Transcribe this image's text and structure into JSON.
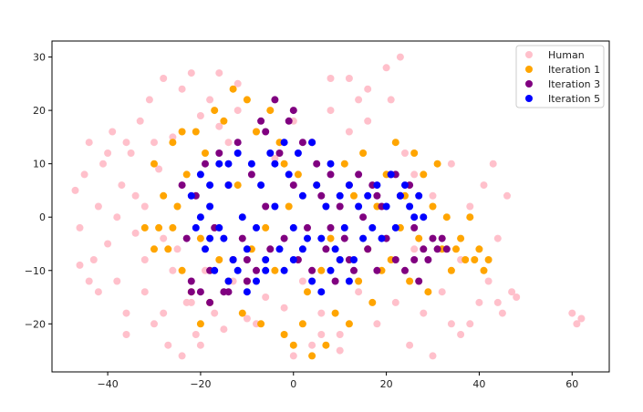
{
  "chart_data": {
    "type": "scatter",
    "title": "",
    "xlabel": "",
    "ylabel": "",
    "xlim": [
      -52,
      68
    ],
    "ylim": [
      -29,
      33
    ],
    "xticks": [
      -40,
      -20,
      0,
      20,
      40,
      60
    ],
    "yticks": [
      -20,
      -10,
      0,
      10,
      20,
      30
    ],
    "legend_position": "top-right",
    "grid": false,
    "series": [
      {
        "name": "Human",
        "color": "#ffc0cb",
        "points": [
          [
            -47,
            5
          ],
          [
            -46,
            -2
          ],
          [
            -45,
            8
          ],
          [
            -44,
            14
          ],
          [
            -43,
            -8
          ],
          [
            -42,
            2
          ],
          [
            -41,
            10
          ],
          [
            -40,
            -5
          ],
          [
            -39,
            16
          ],
          [
            -38,
            -12
          ],
          [
            -37,
            6
          ],
          [
            -36,
            -18
          ],
          [
            -35,
            12
          ],
          [
            -34,
            -3
          ],
          [
            -33,
            18
          ],
          [
            -32,
            -14
          ],
          [
            -31,
            22
          ],
          [
            -30,
            -20
          ],
          [
            -29,
            9
          ],
          [
            -28,
            26
          ],
          [
            -27,
            -24
          ],
          [
            -26,
            15
          ],
          [
            -25,
            -6
          ],
          [
            -24,
            24
          ],
          [
            -23,
            -16
          ],
          [
            -22,
            27
          ],
          [
            -21,
            -22
          ],
          [
            -20,
            19
          ],
          [
            -19,
            -10
          ],
          [
            -18,
            22
          ],
          [
            -17,
            -18
          ],
          [
            -16,
            17
          ],
          [
            -15,
            -21
          ],
          [
            -14,
            14
          ],
          [
            -13,
            -12
          ],
          [
            -12,
            20
          ],
          [
            -10,
            -19
          ],
          [
            -8,
            16
          ],
          [
            -6,
            -15
          ],
          [
            -4,
            11
          ],
          [
            -2,
            -17
          ],
          [
            0,
            18
          ],
          [
            2,
            -12
          ],
          [
            4,
            14
          ],
          [
            6,
            -18
          ],
          [
            8,
            20
          ],
          [
            10,
            -22
          ],
          [
            12,
            16
          ],
          [
            14,
            -14
          ],
          [
            16,
            24
          ],
          [
            18,
            -20
          ],
          [
            20,
            28
          ],
          [
            21,
            22
          ],
          [
            22,
            -16
          ],
          [
            23,
            30
          ],
          [
            24,
            12
          ],
          [
            25,
            -24
          ],
          [
            26,
            8
          ],
          [
            28,
            -18
          ],
          [
            30,
            4
          ],
          [
            32,
            -14
          ],
          [
            34,
            10
          ],
          [
            36,
            -22
          ],
          [
            38,
            2
          ],
          [
            40,
            -16
          ],
          [
            41,
            6
          ],
          [
            42,
            -12
          ],
          [
            43,
            10
          ],
          [
            44,
            -4
          ],
          [
            45,
            -18
          ],
          [
            46,
            4
          ],
          [
            47,
            -14
          ],
          [
            48,
            -15
          ],
          [
            60,
            -18
          ],
          [
            61,
            -20
          ],
          [
            62,
            -19
          ],
          [
            -44,
            -12
          ],
          [
            -38,
            0
          ],
          [
            -34,
            4
          ],
          [
            -30,
            14
          ],
          [
            -26,
            -10
          ],
          [
            -22,
            -16
          ],
          [
            -46,
            -9
          ],
          [
            -42,
            -14
          ],
          [
            -36,
            -22
          ],
          [
            -32,
            -8
          ],
          [
            -28,
            -18
          ],
          [
            36,
            -8
          ],
          [
            38,
            -20
          ],
          [
            44,
            -16
          ],
          [
            12,
            26
          ],
          [
            14,
            22
          ],
          [
            8,
            26
          ],
          [
            16,
            18
          ],
          [
            26,
            -6
          ],
          [
            30,
            -26
          ],
          [
            34,
            -20
          ],
          [
            -16,
            27
          ],
          [
            -12,
            25
          ],
          [
            -40,
            12
          ],
          [
            -36,
            14
          ],
          [
            -32,
            2
          ],
          [
            -28,
            -4
          ],
          [
            -24,
            -26
          ],
          [
            -20,
            -24
          ],
          [
            0,
            -26
          ],
          [
            4,
            -24
          ],
          [
            10,
            -25
          ],
          [
            6,
            -22
          ],
          [
            -8,
            -20
          ]
        ]
      },
      {
        "name": "Iteration 1",
        "color": "#ffa500",
        "points": [
          [
            -30,
            10
          ],
          [
            -29,
            -2
          ],
          [
            -28,
            4
          ],
          [
            -27,
            -6
          ],
          [
            -26,
            14
          ],
          [
            -25,
            2
          ],
          [
            -24,
            -10
          ],
          [
            -23,
            8
          ],
          [
            -22,
            -14
          ],
          [
            -21,
            16
          ],
          [
            -20,
            -4
          ],
          [
            -19,
            12
          ],
          [
            -18,
            -16
          ],
          [
            -17,
            20
          ],
          [
            -16,
            -8
          ],
          [
            -15,
            18
          ],
          [
            -14,
            -12
          ],
          [
            -13,
            24
          ],
          [
            -12,
            6
          ],
          [
            -11,
            -18
          ],
          [
            -10,
            22
          ],
          [
            -9,
            -6
          ],
          [
            -8,
            16
          ],
          [
            -7,
            -20
          ],
          [
            -6,
            -2
          ],
          [
            -5,
            20
          ],
          [
            -4,
            -10
          ],
          [
            -3,
            14
          ],
          [
            -2,
            -22
          ],
          [
            -1,
            2
          ],
          [
            0,
            -24
          ],
          [
            1,
            8
          ],
          [
            2,
            -20
          ],
          [
            3,
            -14
          ],
          [
            4,
            -26
          ],
          [
            5,
            6
          ],
          [
            6,
            -10
          ],
          [
            7,
            -24
          ],
          [
            8,
            -4
          ],
          [
            9,
            -18
          ],
          [
            10,
            -8
          ],
          [
            11,
            10
          ],
          [
            12,
            -20
          ],
          [
            13,
            4
          ],
          [
            14,
            -12
          ],
          [
            15,
            12
          ],
          [
            16,
            -6
          ],
          [
            17,
            -16
          ],
          [
            18,
            2
          ],
          [
            19,
            -10
          ],
          [
            20,
            8
          ],
          [
            21,
            -8
          ],
          [
            22,
            14
          ],
          [
            23,
            -2
          ],
          [
            24,
            4
          ],
          [
            25,
            -12
          ],
          [
            26,
            12
          ],
          [
            27,
            -4
          ],
          [
            28,
            8
          ],
          [
            29,
            -14
          ],
          [
            30,
            2
          ],
          [
            31,
            10
          ],
          [
            32,
            -6
          ],
          [
            33,
            0
          ],
          [
            34,
            -10
          ],
          [
            35,
            -6
          ],
          [
            36,
            -4
          ],
          [
            37,
            -8
          ],
          [
            38,
            0
          ],
          [
            39,
            -8
          ],
          [
            40,
            -6
          ],
          [
            41,
            -10
          ],
          [
            42,
            -8
          ],
          [
            -32,
            -2
          ],
          [
            -30,
            -6
          ],
          [
            -26,
            -2
          ],
          [
            -24,
            16
          ],
          [
            -20,
            -20
          ],
          [
            -10,
            -12
          ],
          [
            -2,
            10
          ]
        ]
      },
      {
        "name": "Iteration 3",
        "color": "#800080",
        "points": [
          [
            -24,
            6
          ],
          [
            -23,
            -4
          ],
          [
            -22,
            -12
          ],
          [
            -21,
            4
          ],
          [
            -20,
            -14
          ],
          [
            -19,
            10
          ],
          [
            -18,
            -10
          ],
          [
            -17,
            -2
          ],
          [
            -16,
            12
          ],
          [
            -15,
            -14
          ],
          [
            -14,
            6
          ],
          [
            -13,
            -8
          ],
          [
            -12,
            14
          ],
          [
            -11,
            -4
          ],
          [
            -10,
            -12
          ],
          [
            -9,
            8
          ],
          [
            -8,
            -10
          ],
          [
            -7,
            18
          ],
          [
            -6,
            2
          ],
          [
            -5,
            -6
          ],
          [
            -4,
            22
          ],
          [
            -3,
            12
          ],
          [
            -2,
            -4
          ],
          [
            -1,
            18
          ],
          [
            0,
            6
          ],
          [
            1,
            -8
          ],
          [
            2,
            14
          ],
          [
            3,
            -2
          ],
          [
            4,
            -10
          ],
          [
            5,
            10
          ],
          [
            6,
            4
          ],
          [
            7,
            -6
          ],
          [
            8,
            8
          ],
          [
            9,
            -12
          ],
          [
            10,
            2
          ],
          [
            11,
            -4
          ],
          [
            12,
            6
          ],
          [
            13,
            -10
          ],
          [
            14,
            8
          ],
          [
            15,
            0
          ],
          [
            16,
            -6
          ],
          [
            17,
            6
          ],
          [
            18,
            -10
          ],
          [
            19,
            2
          ],
          [
            20,
            -4
          ],
          [
            21,
            8
          ],
          [
            22,
            -8
          ],
          [
            23,
            4
          ],
          [
            24,
            -10
          ],
          [
            25,
            6
          ],
          [
            26,
            -2
          ],
          [
            27,
            -12
          ],
          [
            28,
            -6
          ],
          [
            29,
            -8
          ],
          [
            30,
            -4
          ],
          [
            31,
            -6
          ],
          [
            32,
            -4
          ],
          [
            33,
            -6
          ],
          [
            -22,
            -14
          ],
          [
            -18,
            -16
          ],
          [
            -14,
            -14
          ],
          [
            -10,
            -8
          ],
          [
            -6,
            16
          ],
          [
            0,
            20
          ],
          [
            4,
            14
          ],
          [
            8,
            -2
          ],
          [
            12,
            -8
          ],
          [
            18,
            4
          ],
          [
            22,
            8
          ],
          [
            26,
            -8
          ]
        ]
      },
      {
        "name": "Iteration 5",
        "color": "#0000ff",
        "points": [
          [
            -22,
            4
          ],
          [
            -21,
            -2
          ],
          [
            -20,
            8
          ],
          [
            -19,
            -6
          ],
          [
            -18,
            2
          ],
          [
            -17,
            -10
          ],
          [
            -16,
            10
          ],
          [
            -15,
            -4
          ],
          [
            -14,
            6
          ],
          [
            -13,
            -8
          ],
          [
            -12,
            12
          ],
          [
            -11,
            0
          ],
          [
            -10,
            -6
          ],
          [
            -9,
            10
          ],
          [
            -8,
            -2
          ],
          [
            -7,
            6
          ],
          [
            -6,
            -10
          ],
          [
            -5,
            12
          ],
          [
            -4,
            2
          ],
          [
            -3,
            -6
          ],
          [
            -2,
            14
          ],
          [
            -1,
            8
          ],
          [
            0,
            -2
          ],
          [
            1,
            12
          ],
          [
            2,
            4
          ],
          [
            3,
            -4
          ],
          [
            4,
            14
          ],
          [
            5,
            6
          ],
          [
            6,
            -4
          ],
          [
            7,
            2
          ],
          [
            8,
            10
          ],
          [
            9,
            -6
          ],
          [
            10,
            4
          ],
          [
            11,
            -2
          ],
          [
            12,
            6
          ],
          [
            13,
            -8
          ],
          [
            14,
            2
          ],
          [
            15,
            -4
          ],
          [
            16,
            4
          ],
          [
            17,
            -2
          ],
          [
            18,
            6
          ],
          [
            19,
            -4
          ],
          [
            20,
            2
          ],
          [
            21,
            8
          ],
          [
            22,
            -2
          ],
          [
            23,
            4
          ],
          [
            24,
            6
          ],
          [
            25,
            2
          ],
          [
            26,
            0
          ],
          [
            27,
            4
          ],
          [
            28,
            0
          ],
          [
            -20,
            0
          ],
          [
            -18,
            -4
          ],
          [
            -16,
            -2
          ],
          [
            -14,
            -12
          ],
          [
            -12,
            -10
          ],
          [
            -10,
            -14
          ],
          [
            -8,
            -12
          ],
          [
            -6,
            -8
          ],
          [
            -4,
            10
          ],
          [
            -2,
            -10
          ],
          [
            0,
            -8
          ],
          [
            2,
            -6
          ],
          [
            4,
            -12
          ],
          [
            6,
            -14
          ],
          [
            8,
            -10
          ],
          [
            10,
            -8
          ],
          [
            12,
            -12
          ],
          [
            -18,
            6
          ],
          [
            -14,
            10
          ]
        ]
      }
    ]
  }
}
